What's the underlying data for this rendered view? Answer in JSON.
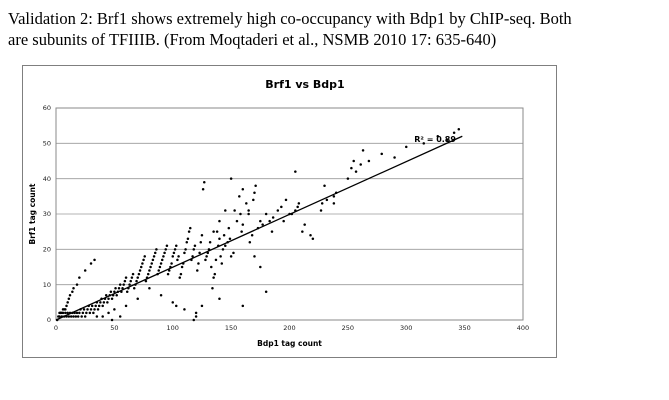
{
  "caption": {
    "line1": "Validation 2:  Brf1 shows extremely high co-occupancy with Bdp1 by ChIP-seq.  Both",
    "line2": "are subunits of TFIIIB. (From Moqtaderi et al., NSMB 2010 17: 635-640)"
  },
  "chart_data": {
    "type": "scatter",
    "title": "Brf1 vs Bdp1",
    "xlabel": "Bdp1 tag count",
    "ylabel": "Brf1 tag count",
    "xlim": [
      0,
      400
    ],
    "ylim": [
      0,
      60
    ],
    "xticks": [
      0,
      50,
      100,
      150,
      200,
      250,
      300,
      350,
      400
    ],
    "yticks": [
      0,
      10,
      20,
      30,
      40,
      50,
      60
    ],
    "grid": "horizontal",
    "annotation": {
      "text": "R² = 0.89",
      "x": 300,
      "y": 51
    },
    "trendline": {
      "x": [
        0,
        348
      ],
      "y": [
        0,
        52
      ]
    },
    "points": [
      [
        345,
        54
      ],
      [
        341,
        53
      ],
      [
        327,
        52
      ],
      [
        279,
        47
      ],
      [
        263,
        48
      ],
      [
        261,
        44
      ],
      [
        257,
        42
      ],
      [
        255,
        45
      ],
      [
        253,
        43
      ],
      [
        240,
        36
      ],
      [
        238,
        35
      ],
      [
        238,
        33
      ],
      [
        232,
        34
      ],
      [
        228,
        33
      ],
      [
        227,
        31
      ],
      [
        220,
        23
      ],
      [
        218,
        24
      ],
      [
        213,
        27
      ],
      [
        211,
        25
      ],
      [
        208,
        33
      ],
      [
        207,
        32
      ],
      [
        205,
        31
      ],
      [
        202,
        30
      ],
      [
        200,
        30
      ],
      [
        197,
        34
      ],
      [
        193,
        32
      ],
      [
        190,
        31
      ],
      [
        186,
        29
      ],
      [
        183,
        28
      ],
      [
        180,
        30
      ],
      [
        177,
        27
      ],
      [
        175,
        28
      ],
      [
        173,
        26
      ],
      [
        171,
        38
      ],
      [
        170,
        36
      ],
      [
        169,
        34
      ],
      [
        168,
        24
      ],
      [
        166,
        22
      ],
      [
        165,
        31
      ],
      [
        163,
        33
      ],
      [
        160,
        27
      ],
      [
        159,
        25
      ],
      [
        158,
        30
      ],
      [
        157,
        35
      ],
      [
        155,
        28
      ],
      [
        153,
        31
      ],
      [
        152,
        19
      ],
      [
        150,
        18
      ],
      [
        149,
        23
      ],
      [
        148,
        26
      ],
      [
        147,
        22
      ],
      [
        145,
        21
      ],
      [
        144,
        24
      ],
      [
        143,
        20
      ],
      [
        142,
        16
      ],
      [
        141,
        18
      ],
      [
        140,
        23
      ],
      [
        139,
        21
      ],
      [
        138,
        25
      ],
      [
        137,
        17
      ],
      [
        136,
        13
      ],
      [
        135,
        12
      ],
      [
        134,
        9
      ],
      [
        133,
        15
      ],
      [
        132,
        22
      ],
      [
        131,
        20
      ],
      [
        130,
        19
      ],
      [
        129,
        18
      ],
      [
        128,
        17
      ],
      [
        127,
        39
      ],
      [
        126,
        37
      ],
      [
        125,
        24
      ],
      [
        124,
        22
      ],
      [
        123,
        19
      ],
      [
        122,
        16
      ],
      [
        121,
        14
      ],
      [
        120,
        2
      ],
      [
        119,
        21
      ],
      [
        118,
        20
      ],
      [
        117,
        18
      ],
      [
        116,
        17
      ],
      [
        115,
        26
      ],
      [
        114,
        25
      ],
      [
        113,
        23
      ],
      [
        112,
        22
      ],
      [
        111,
        20
      ],
      [
        110,
        19
      ],
      [
        109,
        16
      ],
      [
        108,
        15
      ],
      [
        107,
        13
      ],
      [
        106,
        12
      ],
      [
        105,
        18
      ],
      [
        104,
        17
      ],
      [
        103,
        21
      ],
      [
        102,
        20
      ],
      [
        101,
        19
      ],
      [
        100,
        18
      ],
      [
        99,
        16
      ],
      [
        98,
        15
      ],
      [
        97,
        14
      ],
      [
        96,
        13
      ],
      [
        95,
        21
      ],
      [
        94,
        20
      ],
      [
        93,
        19
      ],
      [
        92,
        18
      ],
      [
        91,
        17
      ],
      [
        90,
        16
      ],
      [
        89,
        15
      ],
      [
        88,
        14
      ],
      [
        87,
        13
      ],
      [
        86,
        20
      ],
      [
        85,
        19
      ],
      [
        84,
        18
      ],
      [
        83,
        17
      ],
      [
        82,
        16
      ],
      [
        81,
        15
      ],
      [
        80,
        14
      ],
      [
        79,
        13
      ],
      [
        78,
        12
      ],
      [
        77,
        11
      ],
      [
        76,
        18
      ],
      [
        75,
        17
      ],
      [
        74,
        16
      ],
      [
        73,
        15
      ],
      [
        72,
        14
      ],
      [
        71,
        13
      ],
      [
        70,
        12
      ],
      [
        69,
        11
      ],
      [
        68,
        10
      ],
      [
        67,
        9
      ],
      [
        66,
        13
      ],
      [
        65,
        12
      ],
      [
        64,
        11
      ],
      [
        63,
        10
      ],
      [
        62,
        9
      ],
      [
        61,
        8
      ],
      [
        60,
        12
      ],
      [
        59,
        11
      ],
      [
        58,
        10
      ],
      [
        57,
        9
      ],
      [
        56,
        8
      ],
      [
        55,
        10
      ],
      [
        54,
        9
      ],
      [
        53,
        8
      ],
      [
        52,
        7
      ],
      [
        51,
        9
      ],
      [
        50,
        8
      ],
      [
        49,
        7
      ],
      [
        48,
        6
      ],
      [
        47,
        8
      ],
      [
        46,
        7
      ],
      [
        45,
        6
      ],
      [
        44,
        5
      ],
      [
        43,
        7
      ],
      [
        42,
        6
      ],
      [
        41,
        5
      ],
      [
        40,
        4
      ],
      [
        39,
        6
      ],
      [
        38,
        5
      ],
      [
        37,
        4
      ],
      [
        36,
        3
      ],
      [
        35,
        5
      ],
      [
        34,
        4
      ],
      [
        33,
        3
      ],
      [
        32,
        2
      ],
      [
        31,
        4
      ],
      [
        30,
        3
      ],
      [
        29,
        2
      ],
      [
        28,
        4
      ],
      [
        27,
        3
      ],
      [
        26,
        2
      ],
      [
        25,
        1
      ],
      [
        24,
        3
      ],
      [
        23,
        2
      ],
      [
        22,
        1
      ],
      [
        21,
        3
      ],
      [
        20,
        2
      ],
      [
        19,
        1
      ],
      [
        18,
        2
      ],
      [
        17,
        1
      ],
      [
        16,
        2
      ],
      [
        15,
        1
      ],
      [
        14,
        2
      ],
      [
        13,
        1
      ],
      [
        12,
        2
      ],
      [
        11,
        1
      ],
      [
        10,
        2
      ],
      [
        9,
        1
      ],
      [
        8,
        2
      ],
      [
        7,
        1
      ],
      [
        6,
        2
      ],
      [
        5,
        1
      ],
      [
        4,
        2
      ],
      [
        3,
        1
      ],
      [
        2,
        1
      ],
      [
        1,
        0
      ],
      [
        120,
        1
      ],
      [
        118,
        0
      ],
      [
        110,
        3
      ],
      [
        103,
        4
      ],
      [
        55,
        1
      ],
      [
        48,
        0
      ],
      [
        40,
        1
      ],
      [
        33,
        17
      ],
      [
        30,
        16
      ],
      [
        25,
        14
      ],
      [
        20,
        12
      ],
      [
        18,
        10
      ],
      [
        15,
        9
      ],
      [
        14,
        8
      ],
      [
        12,
        7
      ],
      [
        11,
        6
      ],
      [
        10,
        5
      ],
      [
        9,
        4
      ],
      [
        8,
        3
      ],
      [
        7,
        3
      ],
      [
        6,
        3
      ],
      [
        5,
        2
      ],
      [
        4,
        2
      ],
      [
        3,
        2
      ],
      [
        150,
        40
      ],
      [
        160,
        37
      ],
      [
        145,
        31
      ],
      [
        140,
        28
      ],
      [
        135,
        25
      ],
      [
        165,
        30
      ],
      [
        170,
        18
      ],
      [
        175,
        15
      ],
      [
        185,
        25
      ],
      [
        195,
        28
      ],
      [
        205,
        42
      ],
      [
        230,
        38
      ],
      [
        250,
        40
      ],
      [
        268,
        45
      ],
      [
        290,
        46
      ],
      [
        300,
        49
      ],
      [
        315,
        50
      ],
      [
        335,
        51
      ],
      [
        180,
        8
      ],
      [
        160,
        4
      ],
      [
        140,
        6
      ],
      [
        125,
        4
      ],
      [
        100,
        5
      ],
      [
        90,
        7
      ],
      [
        80,
        9
      ],
      [
        70,
        6
      ],
      [
        60,
        4
      ],
      [
        50,
        3
      ],
      [
        45,
        2
      ],
      [
        35,
        1
      ]
    ]
  }
}
